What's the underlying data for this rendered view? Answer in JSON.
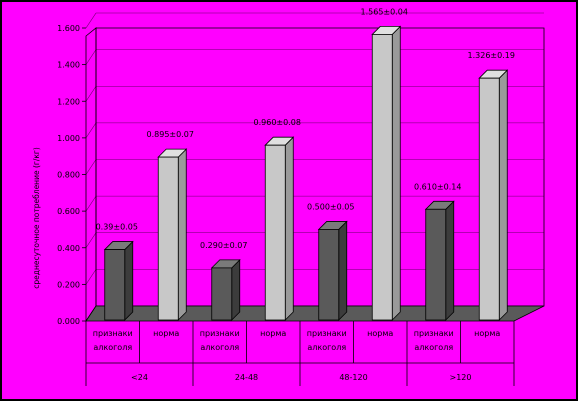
{
  "colors": {
    "background": "#ff00ff",
    "frame": "#000000",
    "bar_sign": "#5a5a5a",
    "bar_norm": "#c8c8c8",
    "floor": "#5a5a5a",
    "grid": "#6a006a"
  },
  "chart_data": {
    "type": "bar",
    "ylabel": "среднесуточное потребление (г/кг)",
    "ylim": [
      0,
      1.6
    ],
    "yticks": [
      "0.000",
      "0.200",
      "0.400",
      "0.600",
      "0.800",
      "1.000",
      "1.200",
      "1.400",
      "1.600"
    ],
    "grid": true,
    "legend": "none",
    "bars": [
      {
        "label": "признаки алкоголя",
        "group": "<24",
        "kind": "sign",
        "value": 0.39,
        "text": "0.39±0.05"
      },
      {
        "label": "норма",
        "group": "<24",
        "kind": "norm",
        "value": 0.895,
        "text": "0.895±0.07"
      },
      {
        "label": "признаки алкоголя",
        "group": "24-48",
        "kind": "sign",
        "value": 0.29,
        "text": "0.290±0.07"
      },
      {
        "label": "норма",
        "group": "24-48",
        "kind": "norm",
        "value": 0.96,
        "text": "0.960±0.08"
      },
      {
        "label": "признаки алкоголя",
        "group": "48-120",
        "kind": "sign",
        "value": 0.5,
        "text": "0.500±0.05"
      },
      {
        "label": "норма",
        "group": "48-120",
        "kind": "norm",
        "value": 1.565,
        "text": "1.565±0.04"
      },
      {
        "label": "признаки алкоголя",
        "group": ">120",
        "kind": "sign",
        "value": 0.61,
        "text": "0.610±0.14"
      },
      {
        "label": "норма",
        "group": ">120",
        "kind": "norm",
        "value": 1.326,
        "text": "1.326±0.19"
      }
    ],
    "groups": [
      "<24",
      "24-48",
      "48-120",
      ">120"
    ]
  }
}
